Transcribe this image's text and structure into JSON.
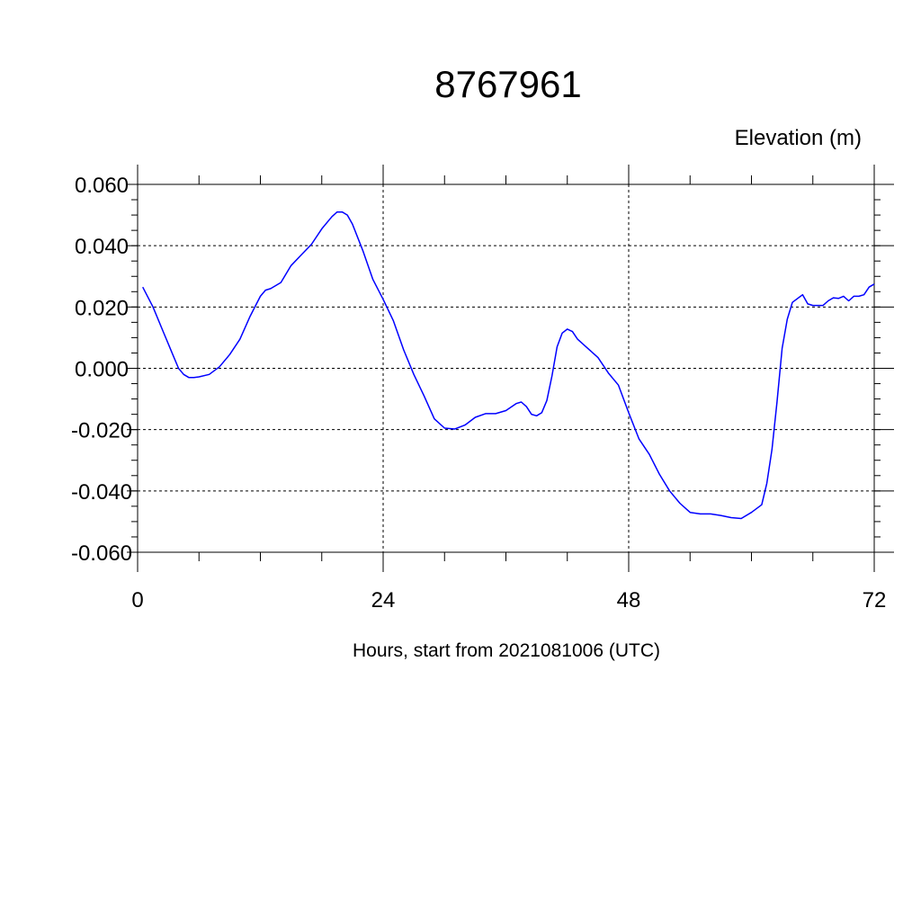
{
  "chart_data": {
    "type": "line",
    "title": "8767961",
    "ylabel": "Elevation (m)",
    "xlabel": "Hours, start from 2021081006 (UTC)",
    "xlim": [
      0,
      72
    ],
    "ylim": [
      -0.06,
      0.06
    ],
    "x_ticks": [
      0,
      24,
      48,
      72
    ],
    "x_tick_labels": [
      "0",
      "24",
      "48",
      "72"
    ],
    "y_ticks": [
      0.06,
      0.04,
      0.02,
      0.0,
      -0.02,
      -0.04,
      -0.06
    ],
    "y_tick_labels": [
      "0.060",
      "0.040",
      "0.020",
      "0.000",
      "-0.020",
      "-0.040",
      "-0.060"
    ],
    "grid": true,
    "colors": {
      "line": "#0000ff",
      "axis": "#000000",
      "grid": "#000000"
    },
    "series": [
      {
        "x": [
          0.5,
          1.5,
          2.5,
          3.5,
          4.0,
          4.5,
          5.0,
          5.5,
          6.0,
          7.0,
          8.0,
          9.0,
          10.0,
          11.0,
          12.0,
          12.5,
          13.0,
          14.0,
          15.0,
          16.0,
          17.0,
          18.0,
          19.0,
          19.5,
          20.0,
          20.5,
          21.0,
          22.0,
          23.0,
          24.0,
          25.0,
          26.0,
          27.0,
          28.0,
          29.0,
          30.0,
          31.0,
          32.0,
          33.0,
          34.0,
          35.0,
          36.0,
          37.0,
          37.5,
          38.0,
          38.5,
          39.0,
          39.5,
          40.0,
          40.5,
          41.0,
          41.5,
          42.0,
          42.5,
          43.0,
          44.0,
          45.0,
          46.0,
          47.0,
          48.0,
          49.0,
          50.0,
          51.0,
          52.0,
          53.0,
          54.0,
          55.0,
          56.0,
          57.0,
          58.0,
          59.0,
          60.0,
          61.0,
          61.5,
          62.0,
          62.5,
          63.0,
          63.5,
          64.0,
          65.0,
          65.5,
          66.0,
          67.0,
          67.5,
          68.0,
          68.5,
          69.0,
          69.5,
          70.0,
          70.5,
          71.0,
          71.5,
          72.0
        ],
        "y": [
          0.0265,
          0.02,
          0.012,
          0.004,
          0.0,
          -0.002,
          -0.003,
          -0.003,
          -0.0028,
          -0.002,
          0.0005,
          0.0045,
          0.0095,
          0.017,
          0.0235,
          0.0255,
          0.026,
          0.028,
          0.0335,
          0.037,
          0.0405,
          0.0455,
          0.0495,
          0.051,
          0.051,
          0.05,
          0.047,
          0.0385,
          0.029,
          0.0225,
          0.0155,
          0.006,
          -0.002,
          -0.009,
          -0.0165,
          -0.0195,
          -0.0198,
          -0.0185,
          -0.016,
          -0.0148,
          -0.0148,
          -0.0138,
          -0.0115,
          -0.011,
          -0.0125,
          -0.015,
          -0.0155,
          -0.0145,
          -0.0105,
          -0.0025,
          0.007,
          0.0115,
          0.0128,
          0.012,
          0.0095,
          0.0065,
          0.0035,
          -0.0015,
          -0.0055,
          -0.0145,
          -0.023,
          -0.028,
          -0.0345,
          -0.04,
          -0.044,
          -0.047,
          -0.0475,
          -0.0475,
          -0.048,
          -0.0487,
          -0.049,
          -0.047,
          -0.0445,
          -0.0375,
          -0.0265,
          -0.011,
          0.0065,
          0.016,
          0.0215,
          0.024,
          0.021,
          0.0205,
          0.0205,
          0.022,
          0.023,
          0.0228,
          0.0235,
          0.022,
          0.0235,
          0.0235,
          0.024,
          0.0265,
          0.0275
        ]
      }
    ]
  }
}
